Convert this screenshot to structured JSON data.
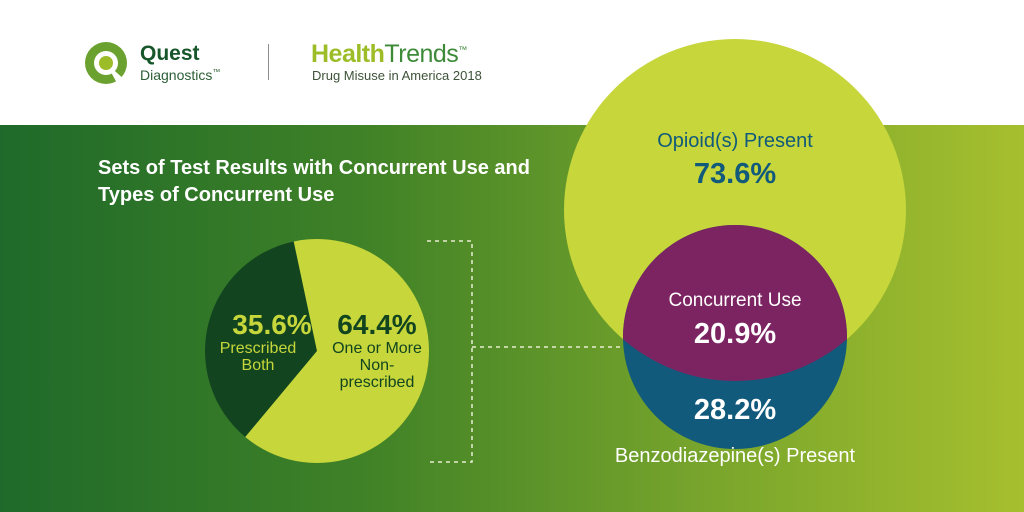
{
  "header": {
    "brand_line1": "Quest",
    "brand_line2": "Diagnostics",
    "trademark": "™",
    "report_title_a": "Health",
    "report_title_b": "Trends",
    "report_subtitle": "Drug Misuse in America 2018"
  },
  "colors": {
    "header_bg": "#ffffff",
    "band_left": "#1f6a2a",
    "band_right": "#a6bf2e",
    "lime": "#c6d63b",
    "dark_green": "#12451f",
    "purple": "#7c2461",
    "teal": "#115a7b",
    "white": "#ffffff"
  },
  "chart_data": [
    {
      "type": "pie",
      "title": "Sets of Test Results with Concurrent Use and Types of Concurrent Use",
      "slices": [
        {
          "value": 35.6,
          "value_label": "35.6%",
          "label_lines": [
            "Prescribed",
            "Both"
          ],
          "color": "#12451f"
        },
        {
          "value": 64.4,
          "value_label": "64.4%",
          "label_lines": [
            "One or More",
            "Non-",
            "prescribed"
          ],
          "color": "#c6d63b"
        }
      ]
    },
    {
      "type": "venn",
      "sets": [
        {
          "label": "Opioid(s) Present",
          "value": 73.6,
          "value_label": "73.6%",
          "color": "#c6d63b"
        },
        {
          "label": "Benzodiazepine(s) Present",
          "value": 28.2,
          "value_label": "28.2%",
          "color": "#115a7b"
        }
      ],
      "intersection": {
        "label": "Concurrent Use",
        "value": 20.9,
        "value_label": "20.9%",
        "color": "#7c2461"
      }
    }
  ]
}
